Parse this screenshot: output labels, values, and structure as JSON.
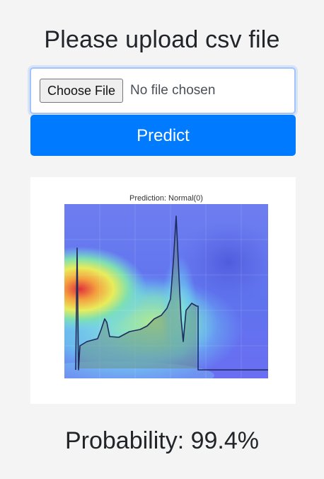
{
  "heading": "Please upload csv file",
  "file_input": {
    "button_label": "Choose File",
    "status": "No file chosen"
  },
  "predict_button": "Predict",
  "result_image": {
    "title": "Prediction: Normal(0)"
  },
  "probability": {
    "label": "Probability: 99.4%",
    "value": 99.4
  },
  "colors": {
    "primary": "#007bff",
    "background": "#f4f4f4"
  }
}
